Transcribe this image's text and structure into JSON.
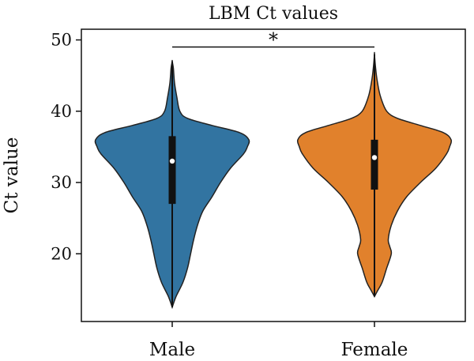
{
  "chart_data": {
    "type": "violin",
    "title": "LBM Ct values",
    "xlabel": "",
    "ylabel": "Ct value",
    "ylim": [
      10.5,
      51.5
    ],
    "yticks": [
      20,
      30,
      40,
      50
    ],
    "grid": false,
    "categories": [
      "Male",
      "Female"
    ],
    "series": [
      {
        "category": "Male",
        "color": "#3274a1",
        "min": 12.5,
        "q1": 27,
        "median": 33,
        "q3": 36.5,
        "max": 47,
        "density": [
          [
            12.5,
            0
          ],
          [
            14,
            0.05
          ],
          [
            16,
            0.14
          ],
          [
            18,
            0.2
          ],
          [
            20,
            0.24
          ],
          [
            22,
            0.28
          ],
          [
            24,
            0.33
          ],
          [
            26,
            0.4
          ],
          [
            28,
            0.52
          ],
          [
            30,
            0.63
          ],
          [
            32,
            0.76
          ],
          [
            34,
            0.93
          ],
          [
            35,
            0.98
          ],
          [
            36,
            1.0
          ],
          [
            37,
            0.88
          ],
          [
            38,
            0.52
          ],
          [
            39,
            0.2
          ],
          [
            40,
            0.1
          ],
          [
            42,
            0.06
          ],
          [
            44,
            0.03
          ],
          [
            46,
            0.015
          ],
          [
            47,
            0
          ]
        ]
      },
      {
        "category": "Female",
        "color": "#e1812c",
        "min": 14,
        "q1": 29,
        "median": 33.5,
        "q3": 36,
        "max": 48,
        "density": [
          [
            14,
            0
          ],
          [
            15,
            0.05
          ],
          [
            16,
            0.1
          ],
          [
            18,
            0.16
          ],
          [
            20,
            0.22
          ],
          [
            21,
            0.2
          ],
          [
            22,
            0.18
          ],
          [
            24,
            0.22
          ],
          [
            26,
            0.3
          ],
          [
            28,
            0.42
          ],
          [
            30,
            0.6
          ],
          [
            32,
            0.8
          ],
          [
            34,
            0.94
          ],
          [
            35,
            0.98
          ],
          [
            36,
            1.0
          ],
          [
            37,
            0.9
          ],
          [
            38,
            0.6
          ],
          [
            39,
            0.3
          ],
          [
            40,
            0.16
          ],
          [
            42,
            0.08
          ],
          [
            44,
            0.04
          ],
          [
            46,
            0.015
          ],
          [
            48,
            0
          ]
        ]
      }
    ],
    "annotations": [
      {
        "text": "*",
        "from": "Male",
        "to": "Female",
        "y": 49
      }
    ]
  }
}
